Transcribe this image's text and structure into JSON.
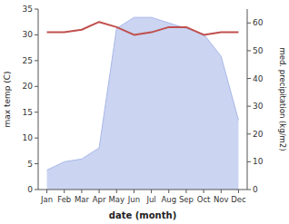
{
  "chart_data": {
    "type": "line",
    "xlabel": "date (month)",
    "ylabel": "max temp (C)",
    "y2label": "med. precipitation (kg/m2)",
    "categories": [
      "Jan",
      "Feb",
      "Mar",
      "Apr",
      "May",
      "Jun",
      "Jul",
      "Aug",
      "Sep",
      "Oct",
      "Nov",
      "Dec"
    ],
    "series": [
      {
        "type": "area",
        "axis": "y2",
        "color": "#a8b8e8",
        "values": [
          7,
          10,
          11,
          15,
          58,
          62,
          62,
          60,
          58,
          56,
          48,
          25
        ]
      },
      {
        "type": "line",
        "color": "#c0504d",
        "values": [
          30.5,
          30.5,
          31.0,
          32.5,
          31.5,
          30.0,
          30.5,
          31.5,
          31.5,
          30.0,
          30.5,
          30.5
        ]
      }
    ],
    "ylim": [
      0,
      35
    ],
    "yticks": [
      0,
      5,
      10,
      15,
      20,
      25,
      30,
      35
    ],
    "y2lim": [
      0,
      65
    ],
    "y2ticks": [
      0,
      10,
      20,
      30,
      40,
      50,
      60
    ],
    "grid": false
  }
}
